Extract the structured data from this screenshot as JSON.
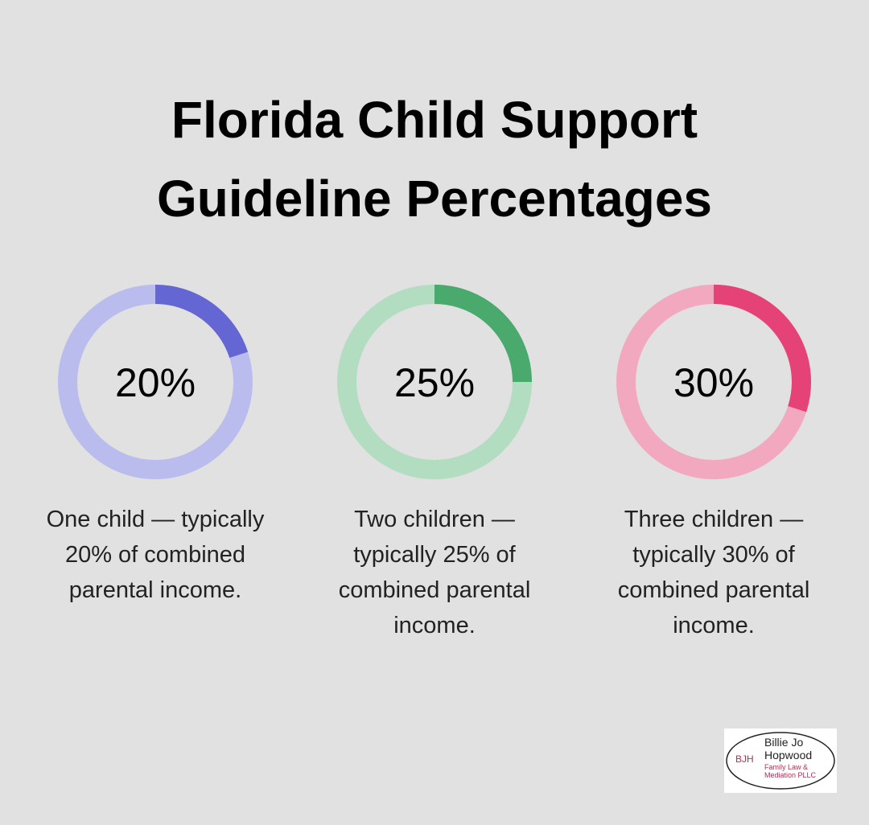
{
  "title": "Florida Child Support Guideline Percentages",
  "chart_data": [
    {
      "type": "donut",
      "values": [
        20
      ],
      "value_labels": [
        "20%"
      ],
      "color": "#6466d4",
      "track_color": "#babced",
      "caption": "One child — typically 20% of combined parental income."
    },
    {
      "type": "donut",
      "values": [
        25
      ],
      "value_labels": [
        "25%"
      ],
      "color": "#4aaa6e",
      "track_color": "#b2ddc1",
      "caption": "Two children — typically 25% of combined parental income."
    },
    {
      "type": "donut",
      "values": [
        30
      ],
      "value_labels": [
        "30%"
      ],
      "color": "#e54377",
      "track_color": "#f2a9c0",
      "caption": "Three children — typically 30% of combined parental income."
    }
  ],
  "logo": {
    "initials": "BJH",
    "name_lines": [
      "Billie Jo",
      "Hopwood"
    ],
    "sub_lines": [
      "Family Law &",
      "Mediation PLLC"
    ]
  }
}
